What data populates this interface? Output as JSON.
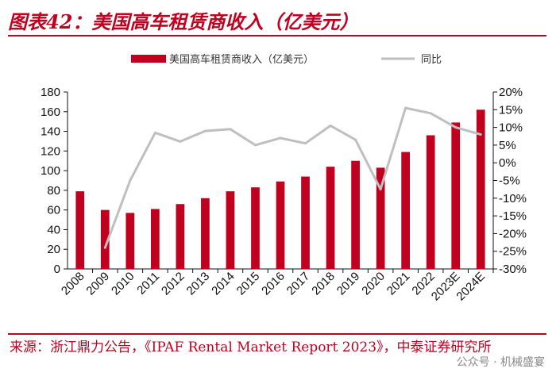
{
  "title": "图表42：美国高车租赁商收入（亿美元）",
  "source": "来源：浙江鼎力公告，《IPAF Rental Market Report 2023》，中泰证券研究所",
  "watermark": "公众号 · 机械盛宴",
  "colors": {
    "bar": "#c0001e",
    "line": "#bfbfbf",
    "accent": "#c0001e",
    "axis": "#111111"
  },
  "chart_data": {
    "type": "bar+line",
    "categories": [
      "2008",
      "2009",
      "2010",
      "2011",
      "2012",
      "2013",
      "2014",
      "2015",
      "2016",
      "2017",
      "2018",
      "2019",
      "2020",
      "2021",
      "2022",
      "2023E",
      "2024E"
    ],
    "series": [
      {
        "name": "美国高车租赁商收入（亿美元）",
        "type": "bar",
        "axis": "left",
        "values": [
          79,
          60,
          57,
          61,
          66,
          72,
          79,
          83,
          89,
          94,
          104,
          110,
          103,
          119,
          136,
          149,
          162
        ]
      },
      {
        "name": "同比",
        "type": "line",
        "axis": "right",
        "values": [
          null,
          -24,
          -5,
          8.5,
          6,
          9,
          9.5,
          5,
          7,
          5.5,
          10.5,
          6.5,
          -7.5,
          15.5,
          14,
          10,
          8
        ]
      }
    ],
    "left_axis": {
      "ylim": [
        0,
        180
      ],
      "ticks": [
        "0",
        "20",
        "40",
        "60",
        "80",
        "100",
        "120",
        "140",
        "160",
        "180"
      ]
    },
    "right_axis": {
      "ylim": [
        -30,
        20
      ],
      "ticks": [
        "-30%",
        "-25%",
        "-20%",
        "-15%",
        "-10%",
        "-5%",
        "0%",
        "5%",
        "10%",
        "15%",
        "20%"
      ]
    },
    "legend": [
      "美国高车租赁商收入（亿美元）",
      "同比"
    ],
    "legend_position": "top-center"
  }
}
